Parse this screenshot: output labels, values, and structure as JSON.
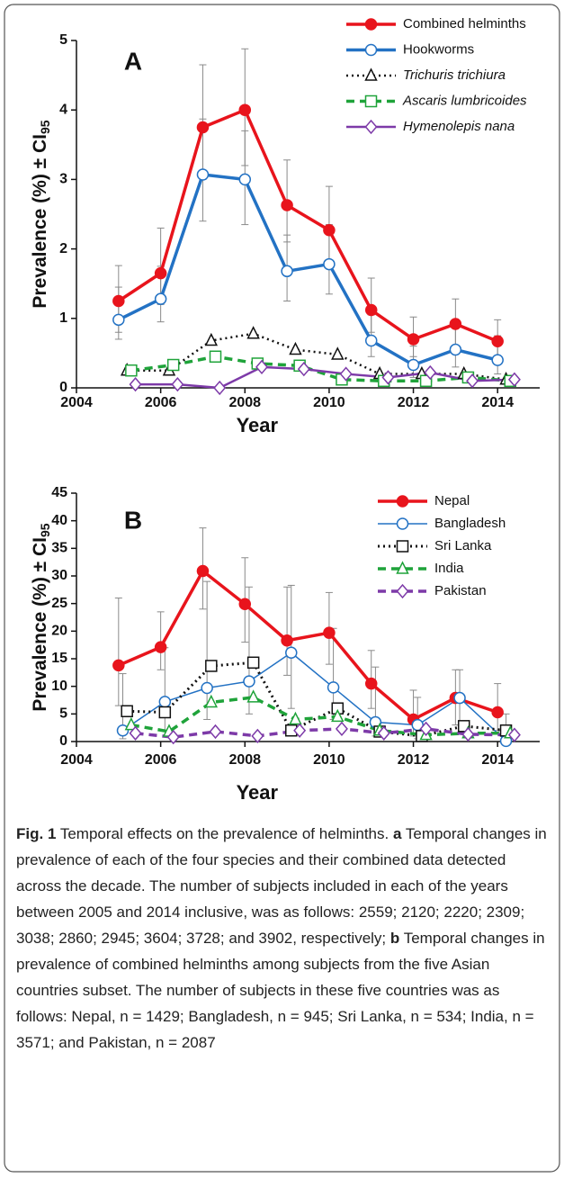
{
  "chart_data": [
    {
      "type": "line",
      "panel": "A",
      "x_label": "Year",
      "y_label": "Prevalence (%) ± CI",
      "y_label_subscript": "95",
      "xlim": [
        2004,
        2015
      ],
      "xticks": [
        2004,
        2006,
        2008,
        2010,
        2012,
        2014
      ],
      "ylim": [
        0,
        5
      ],
      "yticks": [
        0,
        1,
        2,
        3,
        4,
        5
      ],
      "legend": "upper right",
      "series": [
        {
          "name": "Combined helminths",
          "color": "#e8141c",
          "line_style": "solid",
          "line_width": 3.5,
          "marker": "circle",
          "marker_fill": "#e8141c",
          "x": [
            2005,
            2006,
            2007,
            2008,
            2009,
            2010,
            2011,
            2012,
            2013,
            2014
          ],
          "values": [
            1.25,
            1.65,
            3.75,
            4.0,
            2.63,
            2.27,
            1.12,
            0.7,
            0.92,
            0.67
          ],
          "ci_low": [
            0.8,
            1.2,
            3.0,
            3.2,
            2.1,
            1.8,
            0.8,
            0.45,
            0.6,
            0.4
          ],
          "ci_high": [
            1.76,
            2.3,
            4.65,
            4.88,
            3.28,
            2.9,
            1.58,
            1.02,
            1.28,
            0.98
          ]
        },
        {
          "name": "Hookworms",
          "color": "#2372c4",
          "line_style": "solid",
          "line_width": 3.5,
          "marker": "circle",
          "marker_fill": "#ffffff",
          "x": [
            2005,
            2006,
            2007,
            2008,
            2009,
            2010,
            2011,
            2012,
            2013,
            2014
          ],
          "values": [
            0.98,
            1.28,
            3.07,
            3.0,
            1.68,
            1.78,
            0.68,
            0.33,
            0.55,
            0.4
          ],
          "ci_low": [
            0.7,
            0.95,
            2.4,
            2.35,
            1.25,
            1.35,
            0.45,
            0.15,
            0.3,
            0.2
          ],
          "ci_high": [
            1.45,
            1.75,
            3.87,
            3.7,
            2.2,
            2.35,
            1.05,
            0.6,
            0.9,
            0.75
          ]
        },
        {
          "name": "Trichuris trichiura",
          "color": "#111111",
          "line_style": "dotted",
          "line_width": 2.5,
          "marker": "triangle",
          "marker_fill": "#ffffff",
          "italic": true,
          "x": [
            2005.2,
            2006.2,
            2007.2,
            2008.2,
            2009.2,
            2010.2,
            2011.2,
            2012.2,
            2013.2,
            2014.2
          ],
          "values": [
            0.25,
            0.25,
            0.68,
            0.78,
            0.55,
            0.48,
            0.2,
            0.2,
            0.2,
            0.12
          ]
        },
        {
          "name": "Ascaris lumbricoides",
          "color": "#1fa33a",
          "line_style": "dashed",
          "line_width": 3.5,
          "marker": "square",
          "marker_fill": "#ffffff",
          "italic": true,
          "x": [
            2005.3,
            2006.3,
            2007.3,
            2008.3,
            2009.3,
            2010.3,
            2011.3,
            2012.3,
            2013.3,
            2014.3
          ],
          "values": [
            0.25,
            0.33,
            0.45,
            0.35,
            0.32,
            0.12,
            0.1,
            0.1,
            0.15,
            0.1
          ]
        },
        {
          "name": "Hymenolepis nana",
          "color": "#7d3aa8",
          "line_style": "solid",
          "line_width": 2.5,
          "marker": "diamond",
          "marker_fill": "#ffffff",
          "italic": true,
          "x": [
            2005.4,
            2006.4,
            2007.4,
            2008.4,
            2009.4,
            2010.4,
            2011.4,
            2012.4,
            2013.4,
            2014.4
          ],
          "values": [
            0.05,
            0.05,
            0.0,
            0.3,
            0.27,
            0.2,
            0.15,
            0.22,
            0.1,
            0.12
          ]
        }
      ]
    },
    {
      "type": "line",
      "panel": "B",
      "x_label": "Year",
      "y_label": "Prevalence (%) ± CI",
      "y_label_subscript": "95",
      "xlim": [
        2004,
        2015
      ],
      "xticks": [
        2004,
        2006,
        2008,
        2010,
        2012,
        2014
      ],
      "ylim": [
        0,
        45
      ],
      "yticks": [
        0,
        5,
        10,
        15,
        20,
        25,
        30,
        35,
        40,
        45
      ],
      "legend": "upper right",
      "series": [
        {
          "name": "Nepal",
          "color": "#e8141c",
          "line_style": "solid",
          "line_width": 3.5,
          "marker": "circle",
          "marker_fill": "#e8141c",
          "x": [
            2005,
            2006,
            2007,
            2008,
            2009,
            2010,
            2011,
            2012,
            2013,
            2014
          ],
          "values": [
            13.8,
            17.1,
            30.9,
            24.9,
            18.3,
            19.7,
            10.5,
            4.0,
            7.9,
            5.3
          ],
          "ci_low": [
            6.5,
            13,
            24,
            18,
            12,
            14,
            6,
            1,
            3,
            2
          ],
          "ci_high": [
            26,
            23.5,
            38.7,
            33.3,
            28,
            27,
            16.5,
            9.3,
            13,
            10.5
          ]
        },
        {
          "name": "Bangladesh",
          "color": "#2372c4",
          "line_style": "solid",
          "line_width": 1.5,
          "marker": "circle",
          "marker_fill": "#ffffff",
          "x": [
            2005.1,
            2006.1,
            2007.1,
            2008.1,
            2009.1,
            2010.1,
            2011.1,
            2012.1,
            2013.1,
            2014.2
          ],
          "values": [
            2.0,
            7.2,
            9.7,
            10.9,
            16.1,
            9.8,
            3.5,
            3.0,
            7.9,
            0.1
          ],
          "ci_low": [
            0.5,
            2,
            4,
            5,
            6,
            4,
            1,
            0.5,
            3,
            0
          ],
          "ci_high": [
            12.3,
            17,
            29,
            28,
            28.3,
            20.5,
            13.5,
            8,
            13,
            5
          ]
        },
        {
          "name": "Sri Lanka",
          "color": "#111111",
          "line_style": "dotted",
          "line_width": 3,
          "marker": "square",
          "marker_fill": "#ffffff",
          "x": [
            2005.2,
            2006.1,
            2007.2,
            2008.2,
            2009.1,
            2010.2,
            2011.2,
            2012.2,
            2013.2,
            2014.2
          ],
          "values": [
            5.5,
            5.3,
            13.7,
            14.3,
            2.0,
            6.0,
            1.8,
            1.0,
            2.8,
            2.0
          ]
        },
        {
          "name": "India",
          "color": "#1fa33a",
          "line_style": "dashed",
          "line_width": 3.5,
          "marker": "triangle",
          "marker_fill": "#ffffff",
          "x": [
            2005.3,
            2006.2,
            2007.2,
            2008.2,
            2009.2,
            2010.2,
            2011.2,
            2012.3,
            2013.3,
            2014.3
          ],
          "values": [
            3.0,
            1.8,
            7.1,
            8.0,
            4.0,
            4.5,
            2.0,
            1.2,
            1.5,
            1.5
          ]
        },
        {
          "name": "Pakistan",
          "color": "#7d3aa8",
          "line_style": "dashed",
          "line_width": 3.5,
          "marker": "diamond",
          "marker_fill": "#ffffff",
          "x": [
            2005.4,
            2006.3,
            2007.3,
            2008.3,
            2009.3,
            2010.3,
            2011.3,
            2012.3,
            2013.3,
            2014.4
          ],
          "values": [
            1.5,
            0.8,
            1.8,
            1.0,
            2.0,
            2.3,
            1.5,
            2.3,
            1.3,
            1.2
          ]
        }
      ]
    }
  ],
  "caption": {
    "label": "Fig. 1",
    "intro": "Temporal effects on the prevalence of helminths.",
    "parts": [
      {
        "letter": "a",
        "text": "Temporal changes in prevalence of each of the four species and their combined data detected across the decade. The number of subjects included in each of the years between 2005 and 2014 inclusive, was as follows: 2559; 2120; 2220; 2309; 3038; 2860; 2945; 3604; 3728; and 3902, respectively;"
      },
      {
        "letter": "b",
        "text": "Temporal changes in prevalence of combined helminths among subjects from the five Asian countries subset. The number of subjects in these five countries was as follows: Nepal, n = 1429; Bangladesh, n = 945; Sri Lanka, n = 534; India, n = 3571; and Pakistan, n = 2087"
      }
    ]
  }
}
